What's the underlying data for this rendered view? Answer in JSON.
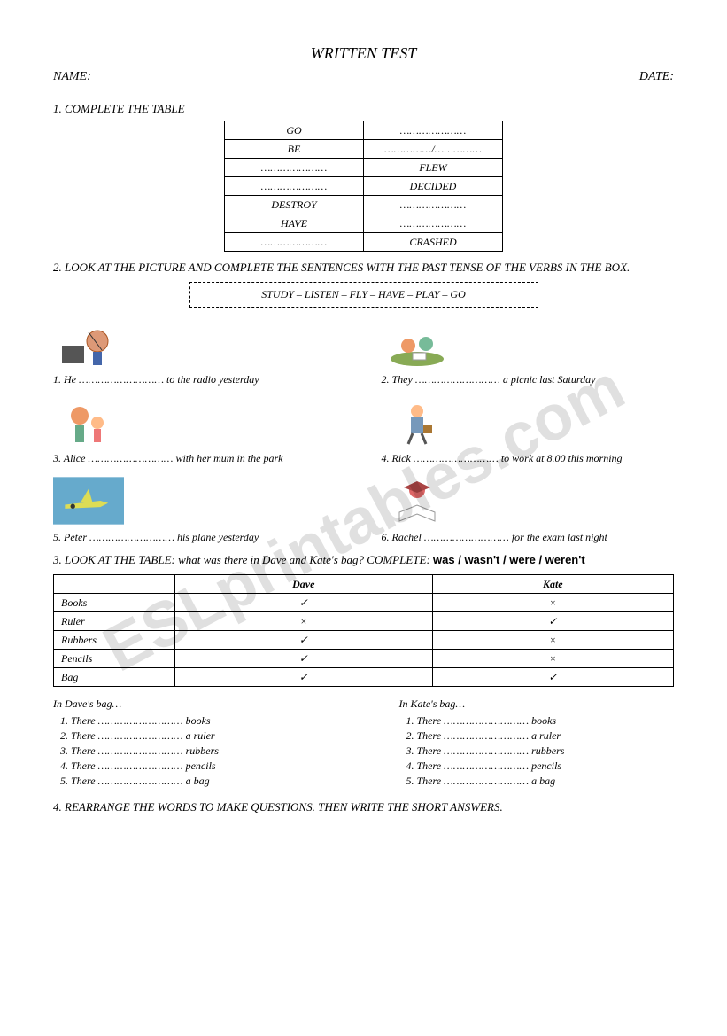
{
  "title": "WRITTEN TEST",
  "header": {
    "name_label": "NAME:",
    "date_label": "DATE:"
  },
  "section1": {
    "title": "1. COMPLETE THE TABLE",
    "rows": [
      {
        "left": "GO",
        "right": "…………………"
      },
      {
        "left": "BE",
        "right": "……………/……………"
      },
      {
        "left": "…………………",
        "right": "FLEW"
      },
      {
        "left": "…………………",
        "right": "DECIDED"
      },
      {
        "left": "DESTROY",
        "right": "…………………"
      },
      {
        "left": "HAVE",
        "right": "…………………"
      },
      {
        "left": "…………………",
        "right": "CRASHED"
      }
    ]
  },
  "section2": {
    "title": "2. LOOK AT THE PICTURE AND COMPLETE THE SENTENCES WITH THE PAST TENSE OF THE VERBS IN THE BOX.",
    "verbs": "STUDY – LISTEN – FLY – HAVE – PLAY – GO",
    "items": [
      {
        "num": "1.",
        "pre": "He",
        "post": "to the radio yesterday",
        "icon": "radio"
      },
      {
        "num": "2.",
        "pre": "They",
        "post": "a picnic last Saturday",
        "icon": "picnic"
      },
      {
        "num": "3.",
        "pre": "Alice",
        "post": "with her mum in the park",
        "icon": "park"
      },
      {
        "num": "4.",
        "pre": "Rick",
        "post": "to work at 8.00 this morning",
        "icon": "work"
      },
      {
        "num": "5.",
        "pre": "Peter",
        "post": "his plane yesterday",
        "icon": "plane"
      },
      {
        "num": "6.",
        "pre": "Rachel",
        "post": "for the exam last night",
        "icon": "study"
      }
    ]
  },
  "section3": {
    "title_a": "3. LOOK AT THE TABLE: what was there in Dave and Kate's bag? COMPLETE: ",
    "title_b": "was / wasn't / were / weren't",
    "cols": [
      "",
      "Dave",
      "Kate"
    ],
    "rows": [
      {
        "label": "Books",
        "dave": "✓",
        "kate": "×"
      },
      {
        "label": "Ruler",
        "dave": "×",
        "kate": "✓"
      },
      {
        "label": "Rubbers",
        "dave": "✓",
        "kate": "×"
      },
      {
        "label": "Pencils",
        "dave": "✓",
        "kate": "×"
      },
      {
        "label": "Bag",
        "dave": "✓",
        "kate": "✓"
      }
    ],
    "dave_header": "In Dave's bag…",
    "kate_header": "In Kate's bag…",
    "lines": [
      "There ……………………… books",
      "There ……………………… a ruler",
      "There ……………………… rubbers",
      "There ……………………… pencils",
      "There ……………………… a bag"
    ]
  },
  "section4": {
    "title": "4. REARRANGE THE WORDS TO MAKE QUESTIONS. THEN WRITE THE SHORT ANSWERS."
  },
  "watermark": "ESLprintables.com",
  "colors": {
    "text": "#000000",
    "watermark": "rgba(0,0,0,0.12)",
    "background": "#ffffff"
  }
}
